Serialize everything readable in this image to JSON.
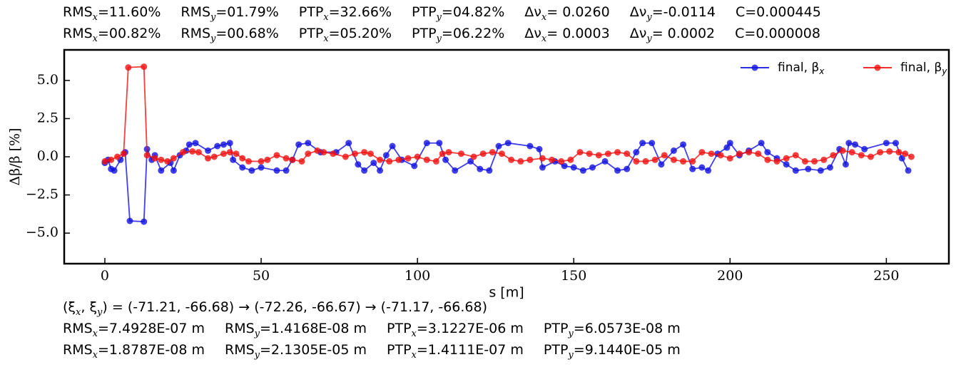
{
  "chart_data": {
    "type": "line",
    "header_lines": [
      [
        {
          "label": "RMS",
          "sub": "x",
          "value": "=11.60%"
        },
        {
          "label": "RMS",
          "sub": "y",
          "value": "=01.79%"
        },
        {
          "label": "PTP",
          "sub": "x",
          "value": "=32.66%"
        },
        {
          "label": "PTP",
          "sub": "y",
          "value": "=04.82%"
        },
        {
          "label": "Δν",
          "sub": "x",
          "value": "= 0.0260"
        },
        {
          "label": "Δν",
          "sub": "y",
          "value": "=-0.0114"
        },
        {
          "label": "C=0.000445"
        }
      ],
      [
        {
          "label": "RMS",
          "sub": "x",
          "value": "=00.82%"
        },
        {
          "label": "RMS",
          "sub": "y",
          "value": "=00.68%"
        },
        {
          "label": "PTP",
          "sub": "x",
          "value": "=05.20%"
        },
        {
          "label": "PTP",
          "sub": "y",
          "value": "=06.22%"
        },
        {
          "label": "Δν",
          "sub": "x",
          "value": "= 0.0003"
        },
        {
          "label": "Δν",
          "sub": "y",
          "value": "= 0.0002"
        },
        {
          "label": "C=0.000008"
        }
      ]
    ],
    "ylabel": "Δβ/β [%]",
    "xlabel": "s [m]",
    "xlim": [
      -13,
      270
    ],
    "ylim": [
      -7,
      7
    ],
    "xticks": [
      0,
      50,
      100,
      150,
      200,
      250
    ],
    "yticks": [
      {
        "value": 5,
        "label": "5.0"
      },
      {
        "value": 2.5,
        "label": "2.5"
      },
      {
        "value": 0,
        "label": "0.0"
      },
      {
        "value": -2.5,
        "label": "−2.5"
      },
      {
        "value": -5,
        "label": "−5.0"
      }
    ],
    "legend": "upper right",
    "series": [
      {
        "name": "final, β",
        "name_sub": "x",
        "color": "#1010e0",
        "x": [
          0,
          1,
          2,
          3,
          5,
          6.5,
          8,
          12.5,
          13.5,
          15,
          16,
          18,
          21,
          22,
          24,
          26,
          27,
          29,
          33,
          36,
          38,
          40,
          41,
          44,
          47,
          50,
          55,
          58,
          60,
          62,
          65,
          69,
          74,
          78,
          81,
          83,
          86,
          88,
          90,
          92,
          95,
          99,
          103,
          107,
          109,
          112,
          117,
          120,
          123,
          126,
          129,
          136,
          139,
          140,
          144,
          147,
          150,
          153,
          156,
          160,
          164,
          167,
          170,
          172,
          175,
          178,
          182,
          185,
          188,
          191,
          193,
          196,
          199,
          200,
          203,
          206,
          210,
          212,
          215,
          218,
          221,
          225,
          229,
          232,
          235,
          237,
          238,
          240,
          243,
          250,
          253,
          255,
          257
        ],
        "values": [
          -0.4,
          -0.2,
          -0.8,
          -0.9,
          -0.2,
          0.3,
          -4.2,
          -4.25,
          0.5,
          -0.2,
          0.1,
          -0.9,
          -0.4,
          -0.9,
          0.1,
          0.4,
          0.8,
          0.9,
          0.4,
          0.7,
          0.8,
          0.9,
          -0.2,
          -0.7,
          -0.9,
          -0.7,
          -0.9,
          -0.9,
          -0.2,
          0.8,
          0.9,
          0.3,
          0.3,
          0.9,
          -0.5,
          -0.9,
          -0.4,
          -0.9,
          0.1,
          0.7,
          -0.2,
          -0.6,
          0.9,
          0.9,
          -0.2,
          -0.9,
          -0.3,
          -0.8,
          -0.9,
          0.7,
          0.9,
          0.7,
          0.5,
          -0.7,
          -0.3,
          -0.6,
          -0.7,
          -0.9,
          -0.7,
          -0.3,
          -0.9,
          -0.8,
          0.3,
          0.9,
          0.9,
          -0.5,
          0.4,
          0.8,
          -0.8,
          -0.7,
          -0.9,
          0.2,
          0.6,
          0.9,
          0.1,
          0.4,
          0.9,
          0.3,
          -0.1,
          -0.5,
          -0.9,
          -0.8,
          -0.9,
          -0.7,
          0.5,
          -0.5,
          0.9,
          0.8,
          0.5,
          0.9,
          0.9,
          -0.1,
          -0.9
        ]
      },
      {
        "name": "final, β",
        "name_sub": "y",
        "color": "#f01010",
        "x": [
          0,
          2,
          4,
          6,
          7.5,
          12.5,
          13.5,
          16,
          18,
          20,
          22,
          25,
          28,
          30,
          33,
          35,
          38,
          40,
          42,
          44,
          46,
          50,
          52,
          55,
          58,
          60,
          63,
          65,
          68,
          70,
          73,
          77,
          80,
          83,
          85,
          88,
          91,
          94,
          97,
          100,
          103,
          106,
          108,
          110,
          114,
          118,
          121,
          124,
          127,
          130,
          133,
          136,
          140,
          143,
          146,
          149,
          152,
          155,
          158,
          161,
          164,
          167,
          170,
          173,
          176,
          179,
          182,
          185,
          188,
          191,
          194,
          197,
          200,
          203,
          206,
          209,
          212,
          215,
          218,
          221,
          224,
          227,
          230,
          233,
          236,
          239,
          242,
          245,
          248,
          251,
          254,
          256,
          258
        ],
        "values": [
          -0.3,
          -0.2,
          0,
          0.2,
          5.85,
          5.9,
          0.1,
          -0.1,
          -0.2,
          -0.3,
          -0.1,
          0.3,
          0.35,
          0.3,
          -0.1,
          0,
          0.2,
          0.3,
          0.2,
          -0.1,
          -0.3,
          -0.3,
          -0.2,
          0.1,
          -0.1,
          -0.2,
          -0.3,
          0.2,
          0.4,
          0.3,
          0.2,
          0,
          0.2,
          0.3,
          0.2,
          -0.2,
          -0.3,
          -0.2,
          -0.1,
          0,
          -0.2,
          -0.3,
          0.2,
          0.3,
          0.2,
          0,
          0.2,
          0.3,
          0.2,
          -0.2,
          -0.3,
          -0.2,
          -0.1,
          -0.2,
          -0.3,
          -0.2,
          0.3,
          0.2,
          0.1,
          0.2,
          0.3,
          0.2,
          -0.3,
          -0.3,
          -0.2,
          0.1,
          -0.2,
          -0.3,
          -0.3,
          0.3,
          0.2,
          0.1,
          -0.1,
          0.2,
          0.3,
          0.2,
          -0.2,
          -0.3,
          -0.1,
          0.1,
          -0.3,
          -0.3,
          -0.2,
          0.1,
          0.4,
          0.3,
          0.1,
          0,
          0.3,
          0.35,
          0.3,
          0.2,
          0
        ]
      }
    ],
    "chroma_line": [
      {
        "label": "(ξ",
        "sub": "x"
      },
      {
        "label": ", ξ",
        "sub": "y",
        "value": ") = (-71.21, -66.68) → (-72.26, -66.67) → (-71.17, -66.68)"
      }
    ],
    "footer_lines": [
      [
        {
          "label": "RMS",
          "sub": "x",
          "value": "=7.4928E-07 m"
        },
        {
          "label": "RMS",
          "sub": "y",
          "value": "=1.4168E-08 m"
        },
        {
          "label": "PTP",
          "sub": "x",
          "value": "=3.1227E-06 m"
        },
        {
          "label": "PTP",
          "sub": "y",
          "value": "=6.0573E-08 m"
        }
      ],
      [
        {
          "label": "RMS",
          "sub": "x",
          "value": "=1.8787E-08 m"
        },
        {
          "label": "RMS",
          "sub": "y",
          "value": "=2.1305E-05 m"
        },
        {
          "label": "PTP",
          "sub": "x",
          "value": "=1.4111E-07 m"
        },
        {
          "label": "PTP",
          "sub": "y",
          "value": "=9.1440E-05 m"
        }
      ]
    ]
  }
}
